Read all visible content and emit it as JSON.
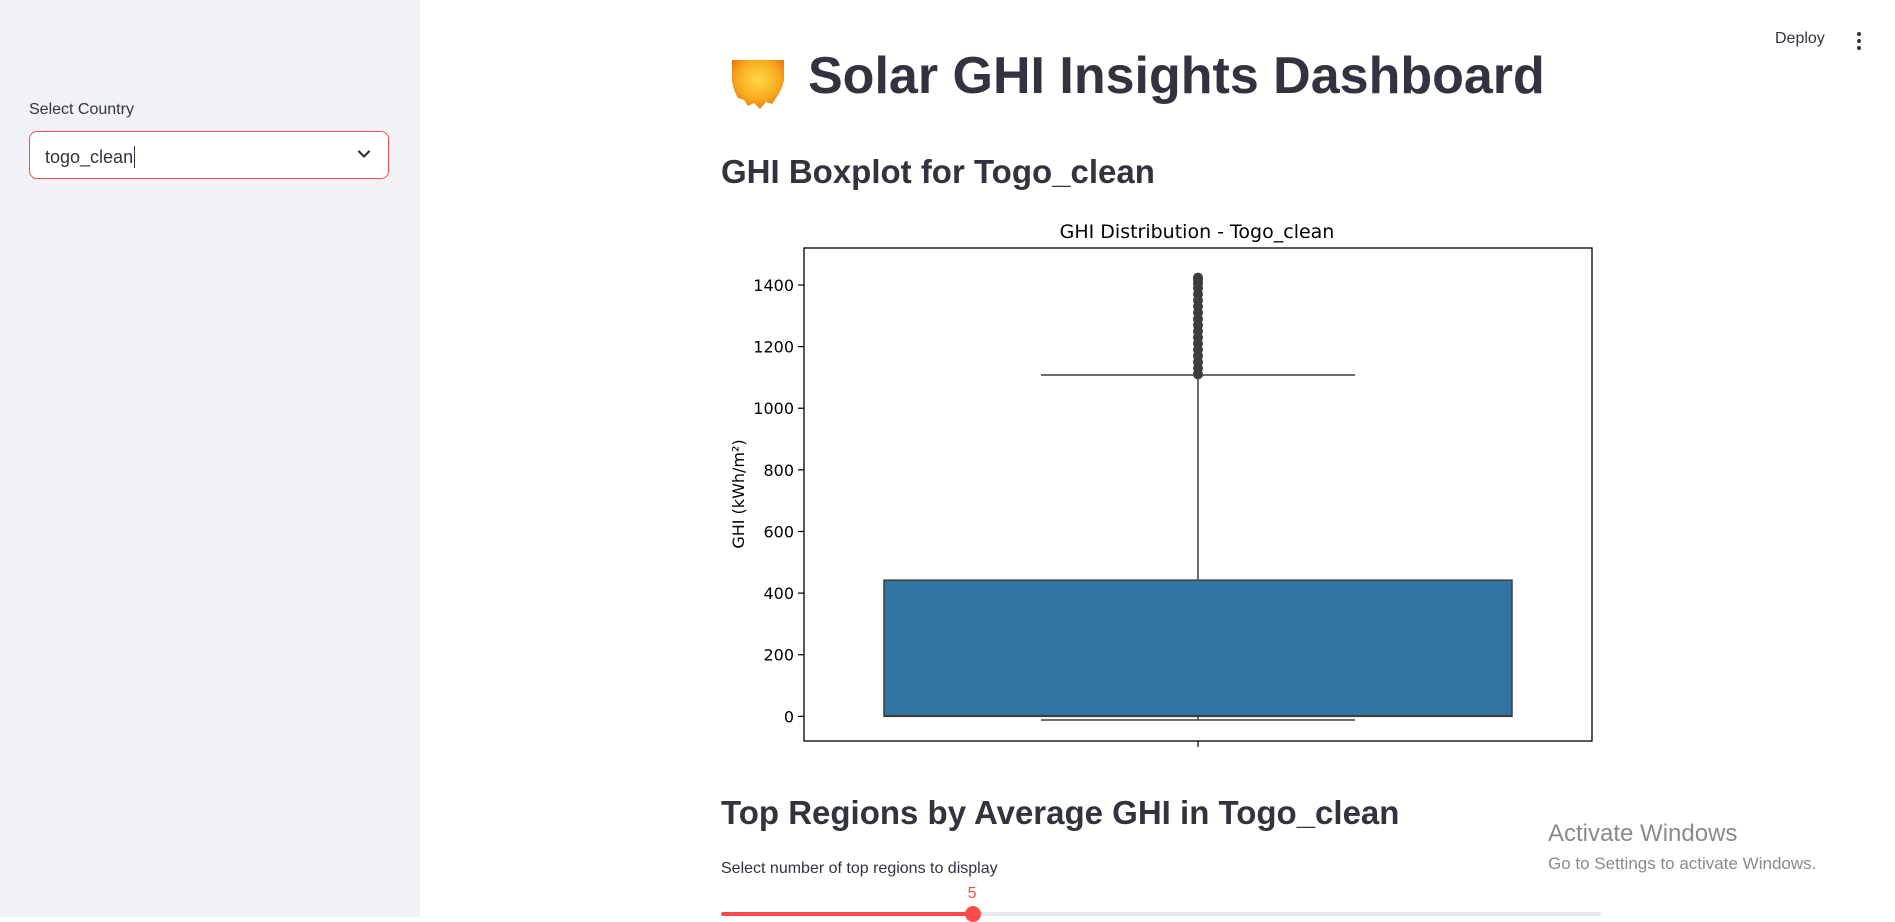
{
  "sidebar": {
    "select_label": "Select Country",
    "select_value": "togo_clean"
  },
  "toolbar": {
    "deploy_label": "Deploy"
  },
  "page": {
    "title": "Solar GHI Insights Dashboard",
    "boxplot_heading": "GHI Boxplot for Togo_clean",
    "top_regions_heading": "Top Regions by Average GHI in Togo_clean"
  },
  "slider": {
    "label": "Select number of top regions to display",
    "value": "5",
    "fill_fraction": 0.286
  },
  "watermark": {
    "title": "Activate Windows",
    "subtitle": "Go to Settings to activate Windows."
  },
  "chart_data": {
    "type": "boxplot",
    "title": "GHI Distribution - Togo_clean",
    "xlabel": "",
    "ylabel": "GHI (kWh/m²)",
    "ylim": [
      -80,
      1520
    ],
    "yticks": [
      0,
      200,
      400,
      600,
      800,
      1000,
      1200,
      1400
    ],
    "box": {
      "whisker_low": -12,
      "q1": 0,
      "median": 2,
      "q3": 442,
      "whisker_high": 1108
    },
    "outliers": [
      1110,
      1130,
      1150,
      1170,
      1190,
      1210,
      1230,
      1250,
      1270,
      1290,
      1310,
      1330,
      1350,
      1370,
      1390,
      1405,
      1415,
      1424
    ],
    "color": "#3274a1"
  }
}
